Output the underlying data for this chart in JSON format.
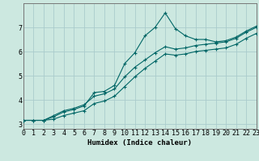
{
  "xlabel": "Humidex (Indice chaleur)",
  "background_color": "#cce8e0",
  "grid_color": "#aacccc",
  "line_color": "#006666",
  "x_data": [
    0,
    1,
    2,
    3,
    4,
    5,
    6,
    7,
    8,
    9,
    10,
    11,
    12,
    13,
    14,
    15,
    16,
    17,
    18,
    19,
    20,
    21,
    22,
    23
  ],
  "y_main": [
    3.15,
    3.15,
    3.15,
    3.3,
    3.5,
    3.6,
    3.75,
    4.3,
    4.35,
    4.6,
    5.5,
    5.95,
    6.65,
    7.0,
    7.6,
    6.95,
    6.65,
    6.5,
    6.5,
    6.4,
    6.45,
    6.6,
    6.85,
    7.05
  ],
  "y_low": [
    3.15,
    3.15,
    3.15,
    3.2,
    3.35,
    3.45,
    3.55,
    3.85,
    3.95,
    4.15,
    4.55,
    4.95,
    5.3,
    5.6,
    5.9,
    5.85,
    5.9,
    6.0,
    6.05,
    6.1,
    6.15,
    6.3,
    6.55,
    6.75
  ],
  "y_high": [
    3.15,
    3.15,
    3.15,
    3.35,
    3.55,
    3.65,
    3.8,
    4.15,
    4.25,
    4.45,
    4.95,
    5.35,
    5.65,
    5.95,
    6.2,
    6.1,
    6.15,
    6.25,
    6.3,
    6.35,
    6.4,
    6.55,
    6.8,
    7.0
  ],
  "xlim": [
    0,
    23
  ],
  "ylim": [
    2.8,
    8.0
  ],
  "yticks": [
    3,
    4,
    5,
    6,
    7
  ],
  "xticks": [
    0,
    1,
    2,
    3,
    4,
    5,
    6,
    7,
    8,
    9,
    10,
    11,
    12,
    13,
    14,
    15,
    16,
    17,
    18,
    19,
    20,
    21,
    22,
    23
  ],
  "xlabel_fontsize": 6.5,
  "tick_fontsize": 6
}
